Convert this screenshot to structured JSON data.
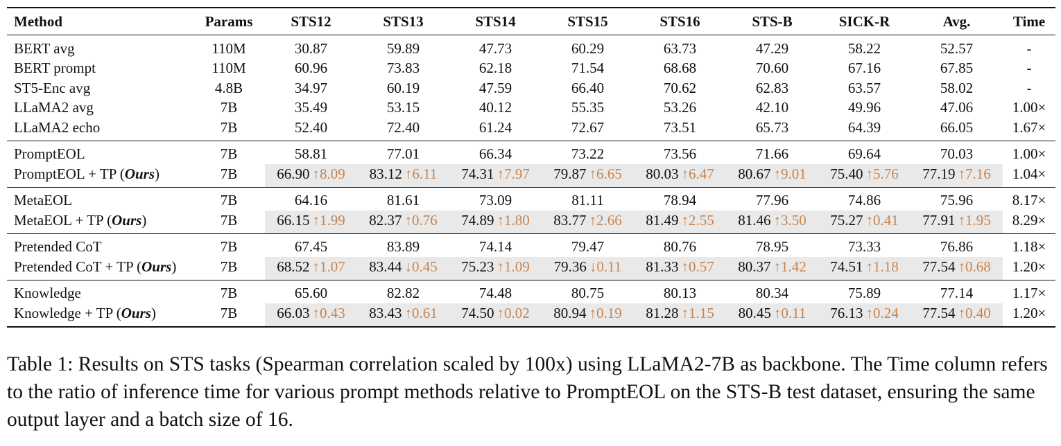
{
  "table": {
    "headers": [
      "Method",
      "Params",
      "STS12",
      "STS13",
      "STS14",
      "STS15",
      "STS16",
      "STS-B",
      "SICK-R",
      "Avg.",
      "Time"
    ],
    "ours_label": "Ours",
    "up_arrow": "↑",
    "down_arrow": "↓",
    "groups": [
      [
        {
          "method": "BERT avg",
          "params": "110M",
          "values": [
            "30.87",
            "59.89",
            "47.73",
            "60.29",
            "63.73",
            "47.29",
            "58.22",
            "52.57"
          ],
          "time": "-"
        },
        {
          "method": "BERT prompt",
          "params": "110M",
          "values": [
            "60.96",
            "73.83",
            "62.18",
            "71.54",
            "68.68",
            "70.60",
            "67.16",
            "67.85"
          ],
          "time": "-"
        },
        {
          "method": "ST5-Enc avg",
          "params": "4.8B",
          "values": [
            "34.97",
            "60.19",
            "47.59",
            "66.40",
            "70.62",
            "62.83",
            "63.57",
            "58.02"
          ],
          "time": "-"
        },
        {
          "method": "LLaMA2 avg",
          "params": "7B",
          "values": [
            "35.49",
            "53.15",
            "40.12",
            "55.35",
            "53.26",
            "42.10",
            "49.96",
            "47.06"
          ],
          "time": "1.00×"
        },
        {
          "method": "LLaMA2 echo",
          "params": "7B",
          "values": [
            "52.40",
            "72.40",
            "61.24",
            "72.67",
            "73.51",
            "65.73",
            "64.39",
            "66.05"
          ],
          "time": "1.67×"
        }
      ],
      [
        {
          "method": "PromptEOL",
          "params": "7B",
          "values": [
            "58.81",
            "77.01",
            "66.34",
            "73.22",
            "73.56",
            "71.66",
            "69.64",
            "70.03"
          ],
          "time": "1.00×"
        },
        {
          "method": "PromptEOL + TP",
          "ours": true,
          "params": "7B",
          "values": [
            "66.90",
            "83.12",
            "74.31",
            "79.87",
            "80.03",
            "80.67",
            "75.40",
            "77.19"
          ],
          "deltas": [
            {
              "dir": "up",
              "v": "8.09"
            },
            {
              "dir": "up",
              "v": "6.11"
            },
            {
              "dir": "up",
              "v": "7.97"
            },
            {
              "dir": "up",
              "v": "6.65"
            },
            {
              "dir": "up",
              "v": "6.47"
            },
            {
              "dir": "up",
              "v": "9.01"
            },
            {
              "dir": "up",
              "v": "5.76"
            },
            {
              "dir": "up",
              "v": "7.16"
            }
          ],
          "time": "1.04×"
        }
      ],
      [
        {
          "method": "MetaEOL",
          "params": "7B",
          "values": [
            "64.16",
            "81.61",
            "73.09",
            "81.11",
            "78.94",
            "77.96",
            "74.86",
            "75.96"
          ],
          "time": "8.17×"
        },
        {
          "method": "MetaEOL + TP",
          "ours": true,
          "params": "7B",
          "values": [
            "66.15",
            "82.37",
            "74.89",
            "83.77",
            "81.49",
            "81.46",
            "75.27",
            "77.91"
          ],
          "deltas": [
            {
              "dir": "up",
              "v": "1.99"
            },
            {
              "dir": "up",
              "v": "0.76"
            },
            {
              "dir": "up",
              "v": "1.80"
            },
            {
              "dir": "up",
              "v": "2.66"
            },
            {
              "dir": "up",
              "v": "2.55"
            },
            {
              "dir": "up",
              "v": "3.50"
            },
            {
              "dir": "up",
              "v": "0.41"
            },
            {
              "dir": "up",
              "v": "1.95"
            }
          ],
          "time": "8.29×"
        }
      ],
      [
        {
          "method": "Pretended CoT",
          "params": "7B",
          "values": [
            "67.45",
            "83.89",
            "74.14",
            "79.47",
            "80.76",
            "78.95",
            "73.33",
            "76.86"
          ],
          "time": "1.18×"
        },
        {
          "method": "Pretended CoT + TP",
          "ours": true,
          "params": "7B",
          "values": [
            "68.52",
            "83.44",
            "75.23",
            "79.36",
            "81.33",
            "80.37",
            "74.51",
            "77.54"
          ],
          "deltas": [
            {
              "dir": "up",
              "v": "1.07"
            },
            {
              "dir": "down",
              "v": "0.45"
            },
            {
              "dir": "up",
              "v": "1.09"
            },
            {
              "dir": "down",
              "v": "0.11"
            },
            {
              "dir": "up",
              "v": "0.57"
            },
            {
              "dir": "up",
              "v": "1.42"
            },
            {
              "dir": "up",
              "v": "1.18"
            },
            {
              "dir": "up",
              "v": "0.68"
            }
          ],
          "time": "1.20×"
        }
      ],
      [
        {
          "method": "Knowledge",
          "params": "7B",
          "values": [
            "65.60",
            "82.82",
            "74.48",
            "80.75",
            "80.13",
            "80.34",
            "75.89",
            "77.14"
          ],
          "time": "1.17×"
        },
        {
          "method": "Knowledge + TP",
          "ours": true,
          "params": "7B",
          "values": [
            "66.03",
            "83.43",
            "74.50",
            "80.94",
            "81.28",
            "80.45",
            "76.13",
            "77.54"
          ],
          "deltas": [
            {
              "dir": "up",
              "v": "0.43"
            },
            {
              "dir": "up",
              "v": "0.61"
            },
            {
              "dir": "up",
              "v": "0.02"
            },
            {
              "dir": "up",
              "v": "0.19"
            },
            {
              "dir": "up",
              "v": "1.15"
            },
            {
              "dir": "up",
              "v": "0.11"
            },
            {
              "dir": "up",
              "v": "0.24"
            },
            {
              "dir": "up",
              "v": "0.40"
            }
          ],
          "time": "1.20×"
        }
      ]
    ]
  },
  "caption": "Table 1: Results on STS tasks (Spearman correlation scaled by 100x) using LLaMA2-7B as backbone. The Time column refers to the ratio of inference time for various prompt methods relative to PromptEOL on the STS-B test dataset, ensuring the same output layer and a batch size of 16."
}
